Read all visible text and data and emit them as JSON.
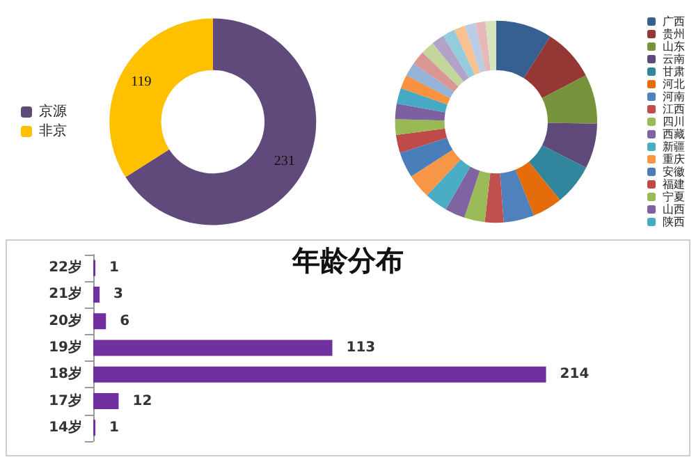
{
  "chart_data": [
    {
      "type": "donut",
      "categories": [
        "京源",
        "非京"
      ],
      "values": [
        231,
        119
      ],
      "colors": [
        "#604a7b",
        "#ffc000"
      ],
      "data_labels": true,
      "legend": "left"
    },
    {
      "type": "donut",
      "categories": [
        "广西",
        "贵州",
        "山东",
        "云南",
        "甘肃",
        "河北",
        "河南",
        "江西",
        "四川",
        "西藏",
        "新疆",
        "重庆",
        "安徽",
        "福建",
        "宁夏",
        "山西",
        "陕西",
        null,
        null,
        null,
        null,
        null,
        null,
        null,
        null,
        null,
        null
      ],
      "values": [
        9,
        8.4,
        7.9,
        7.2,
        6.6,
        4.8,
        4.9,
        3,
        3.3,
        3.2,
        3.7,
        3.9,
        4.1,
        2.9,
        2.5,
        2.5,
        2.5,
        2.2,
        2.2,
        2.2,
        2.2,
        2,
        2,
        1.8,
        1.7,
        1.6,
        1.7
      ],
      "colors": [
        "#376092",
        "#953735",
        "#77933c",
        "#5f497a",
        "#31859c",
        "#e46c0a",
        "#4f81bd",
        "#c0504d",
        "#9bbb59",
        "#8064a2",
        "#4bacc6",
        "#f79646",
        "#4a7ebb",
        "#be4b48",
        "#98b954",
        "#7d60a0",
        "#46aac5",
        "#f69240",
        "#95b3d7",
        "#d99694",
        "#c3d69b",
        "#b3a2c7",
        "#93cddd",
        "#fac090",
        "#b9cde5",
        "#e6b9b8",
        "#d7e4bd"
      ],
      "legend": "right"
    },
    {
      "type": "bar",
      "orientation": "horizontal",
      "title": "年龄分布",
      "categories": [
        "22岁",
        "21岁",
        "20岁",
        "19岁",
        "18岁",
        "17岁",
        "14岁"
      ],
      "values": [
        1,
        3,
        6,
        113,
        214,
        12,
        1
      ],
      "color": "#7030a0",
      "data_labels": true
    }
  ]
}
